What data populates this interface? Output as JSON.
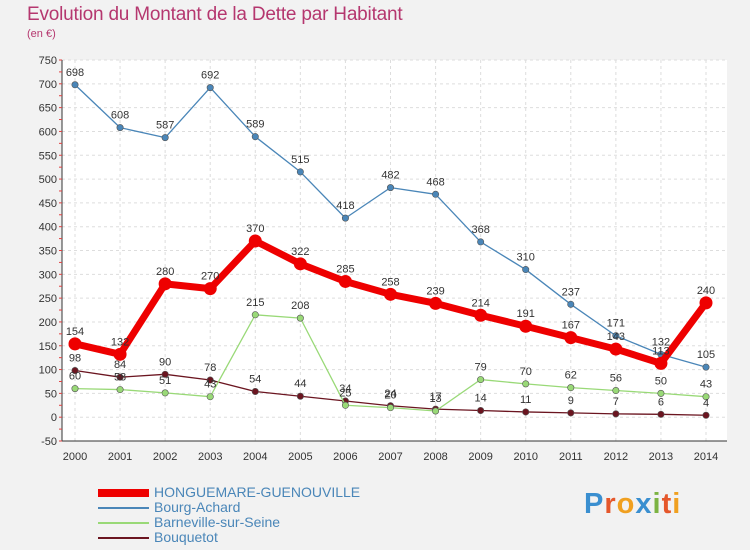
{
  "header": {
    "title": "Evolution du Montant de la Dette par Habitant",
    "subtitle": "(en €)"
  },
  "logo": {
    "letters": [
      "P",
      "r",
      "o",
      "x",
      "i",
      "t",
      "i"
    ],
    "colors": [
      "#3a8fd0",
      "#e5572b",
      "#f0a020",
      "#3a8fd0",
      "#7cb342",
      "#e5572b",
      "#f0a020"
    ]
  },
  "chart_data": {
    "type": "line",
    "title": "Evolution du Montant de la Dette par Habitant",
    "subtitle": "(en €)",
    "x": [
      "2000",
      "2001",
      "2002",
      "2003",
      "2004",
      "2005",
      "2006",
      "2007",
      "2008",
      "2009",
      "2010",
      "2011",
      "2012",
      "2013",
      "2014"
    ],
    "ylim": [
      -50,
      750
    ],
    "yticks": [
      -50,
      0,
      50,
      100,
      150,
      200,
      250,
      300,
      350,
      400,
      450,
      500,
      550,
      600,
      650,
      700,
      750
    ],
    "grid": true,
    "legend_position": "bottom-left",
    "series": [
      {
        "name": "HONGUEMARE-GUENOUVILLE",
        "color": "#ee0000",
        "values": [
          154,
          132,
          280,
          270,
          370,
          322,
          285,
          258,
          239,
          214,
          191,
          167,
          143,
          113,
          240
        ],
        "labels": [
          "154",
          "132",
          "280",
          "270",
          "370",
          "322",
          "285",
          "258",
          "239",
          "214",
          "191",
          "167",
          "143",
          "113",
          "240"
        ]
      },
      {
        "name": "Bourg-Achard",
        "color": "#4a86b8",
        "values": [
          698,
          608,
          587,
          692,
          589,
          515,
          418,
          482,
          468,
          368,
          310,
          237,
          171,
          132,
          105
        ],
        "labels": [
          "698",
          "608",
          "587",
          "692",
          "589",
          "515",
          "418",
          "482",
          "468",
          "368",
          "310",
          "237",
          "171",
          "132",
          "105"
        ]
      },
      {
        "name": "Barneville-sur-Seine",
        "color": "#99d977",
        "values": [
          60,
          58,
          51,
          43,
          215,
          208,
          25,
          20,
          13,
          79,
          70,
          62,
          56,
          50,
          43
        ],
        "labels": [
          "60",
          "58",
          "51",
          "43",
          "215",
          "208",
          "25",
          "20",
          "13",
          "79",
          "70",
          "62",
          "56",
          "50",
          "43"
        ]
      },
      {
        "name": "Bouquetot",
        "color": "#6b1520",
        "values": [
          98,
          84,
          90,
          78,
          54,
          44,
          34,
          24,
          17,
          14,
          11,
          9,
          7,
          6,
          4
        ],
        "labels": [
          "98",
          "84",
          "90",
          "78",
          "54",
          "44",
          "34",
          "24",
          "17",
          "14",
          "11",
          "9",
          "7",
          "6",
          "4"
        ]
      }
    ]
  }
}
